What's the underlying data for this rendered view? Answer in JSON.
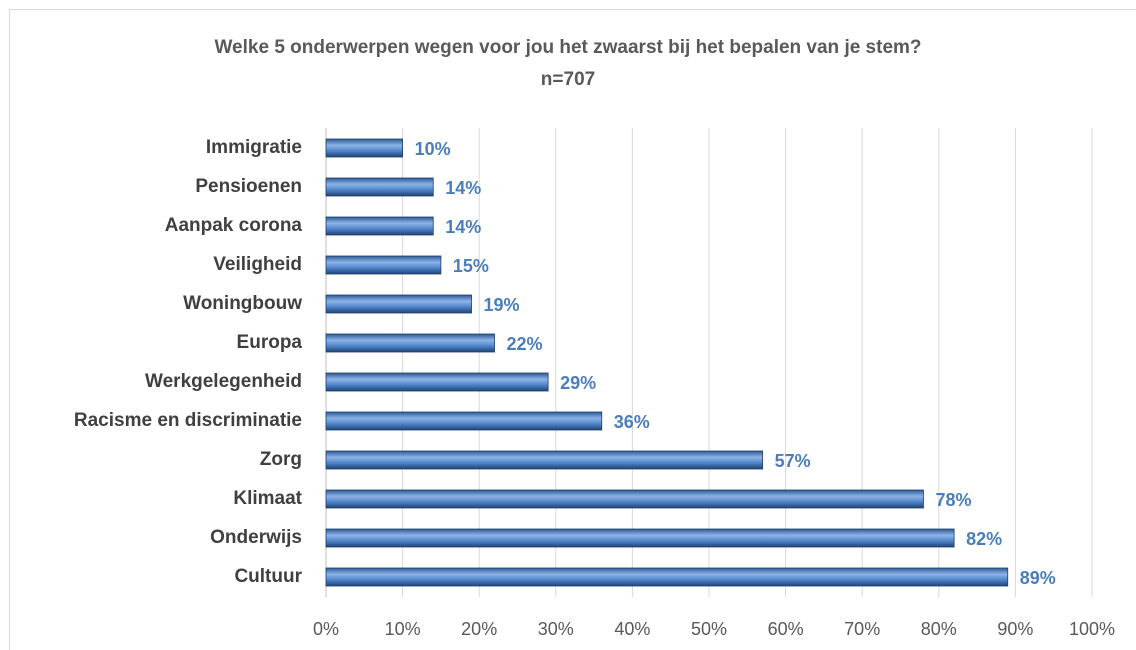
{
  "chart_data": {
    "type": "barh",
    "title": "Welke 5 onderwerpen wegen voor jou het zwaarst bij het bepalen van je stem?",
    "subtitle": "n=707",
    "categories": [
      "Immigratie",
      "Pensioenen",
      "Aanpak corona",
      "Veiligheid",
      "Woningbouw",
      "Europa",
      "Werkgelegenheid",
      "Racisme en discriminatie",
      "Zorg",
      "Klimaat",
      "Onderwijs",
      "Cultuur"
    ],
    "values": [
      10,
      14,
      14,
      15,
      19,
      22,
      29,
      36,
      57,
      78,
      82,
      89
    ],
    "value_labels": [
      "10%",
      "14%",
      "14%",
      "15%",
      "19%",
      "22%",
      "29%",
      "36%",
      "57%",
      "78%",
      "82%",
      "89%"
    ],
    "color": "#4a7ebb",
    "xlim": [
      0,
      100
    ],
    "xticks": [
      {
        "value": 0,
        "label": "0%"
      },
      {
        "value": 10,
        "label": "10%"
      },
      {
        "value": 20,
        "label": "20%"
      },
      {
        "value": 30,
        "label": "30%"
      },
      {
        "value": 40,
        "label": "40%"
      },
      {
        "value": 50,
        "label": "50%"
      },
      {
        "value": 60,
        "label": "60%"
      },
      {
        "value": 70,
        "label": "70%"
      },
      {
        "value": 80,
        "label": "80%"
      },
      {
        "value": 90,
        "label": "90%"
      },
      {
        "value": 100,
        "label": "100%"
      }
    ],
    "grid": true
  }
}
